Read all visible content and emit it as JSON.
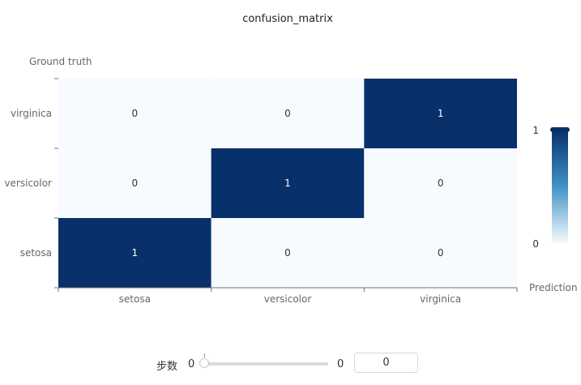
{
  "chart_data": {
    "type": "heatmap",
    "title": "confusion_matrix",
    "xlabel": "Prediction",
    "ylabel": "Ground truth",
    "x_categories": [
      "setosa",
      "versicolor",
      "virginica"
    ],
    "y_categories": [
      "setosa",
      "versicolor",
      "virginica"
    ],
    "values": [
      [
        1,
        0,
        0
      ],
      [
        0,
        1,
        0
      ],
      [
        0,
        0,
        1
      ]
    ],
    "value_range": [
      0,
      1
    ],
    "colorscale": {
      "low": "#f7fbff",
      "high": "#08306b"
    },
    "visualmap": {
      "min_label": "0",
      "max_label": "1",
      "placement": "right"
    }
  },
  "slider": {
    "label": "步数",
    "min_label": "0",
    "max_label": "0",
    "value": "0"
  }
}
